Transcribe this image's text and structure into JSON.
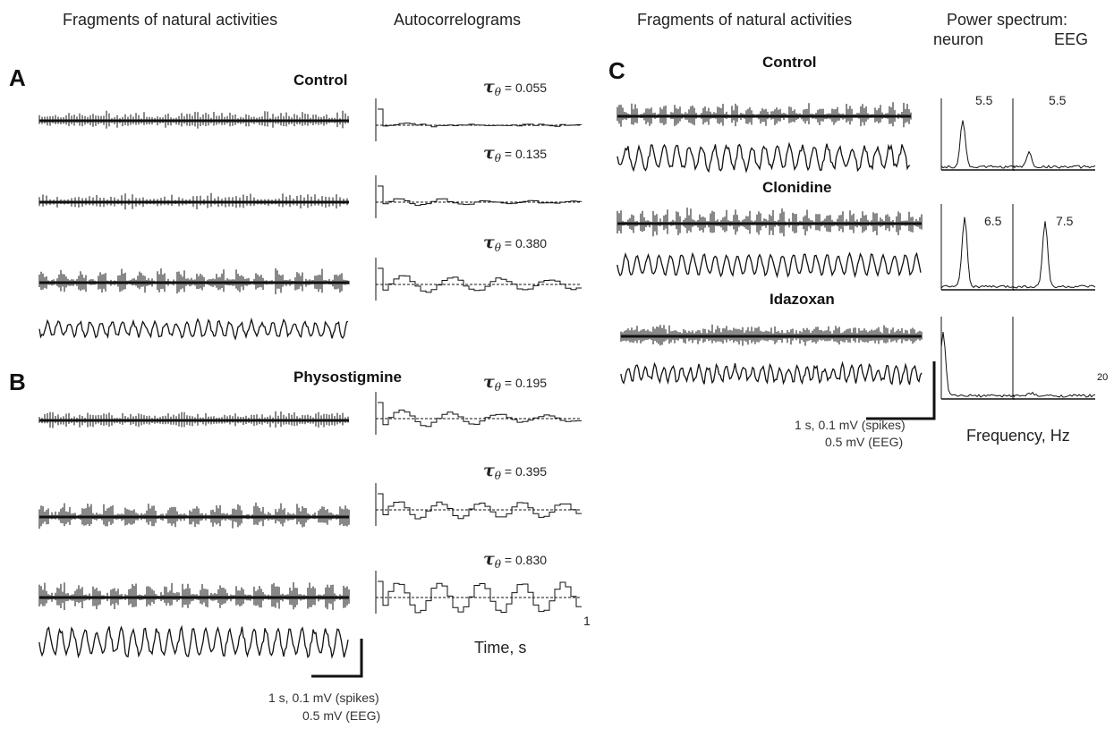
{
  "headers": {
    "left_fragments": "Fragments of natural activities",
    "autocorrelograms": "Autocorrelograms",
    "right_fragments": "Fragments of natural activities",
    "power_spectrum": "Power spectrum:",
    "neuron": "neuron",
    "eeg": "EEG"
  },
  "panels": {
    "A": {
      "letter": "A",
      "condition": "Control",
      "tau": [
        "= 0.055",
        "= 0.135",
        "= 0.380"
      ]
    },
    "B": {
      "letter": "B",
      "condition": "Physostigmine",
      "tau": [
        "= 0.195",
        "= 0.395",
        "= 0.830"
      ],
      "axis_end": "1",
      "time_label": "Time, s"
    },
    "C": {
      "letter": "C",
      "conditions": [
        "Control",
        "Clonidine",
        "Idazoxan"
      ],
      "neuron_peaks": [
        "5.5",
        "6.5"
      ],
      "eeg_peaks": [
        "5.5",
        "7.5"
      ],
      "freq_end": "20",
      "freq_label": "Frequency, Hz"
    }
  },
  "tau_symbol": "τ",
  "tau_sub": "θ",
  "scale_bar": {
    "line1": "1 s, 0.1 mV (spikes)",
    "line2": "0.5 mV (EEG)"
  }
}
